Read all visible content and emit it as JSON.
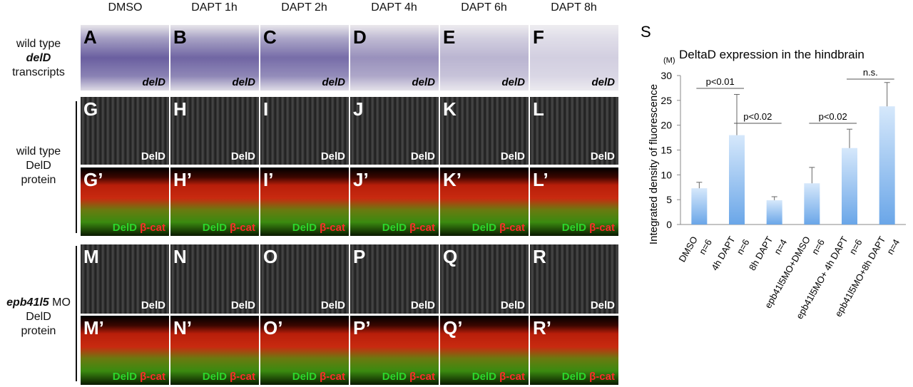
{
  "column_headers": [
    "DMSO",
    "DAPT 1h",
    "DAPT 2h",
    "DAPT 4h",
    "DAPT 6h",
    "DAPT 8h"
  ],
  "row_labels": {
    "r1": {
      "l1": "wild type",
      "l2": "delD",
      "l3": "transcripts"
    },
    "r2": {
      "l1": "wild type",
      "l2": "DelD",
      "l3": "protein"
    },
    "r3": {
      "l1a": "epb41l5",
      "l1b": " MO",
      "l2": "DelD",
      "l3": "protein"
    }
  },
  "ish": {
    "letters": [
      "A",
      "B",
      "C",
      "D",
      "E",
      "F"
    ],
    "tag": "delD"
  },
  "delta": {
    "letters": [
      "G",
      "H",
      "I",
      "J",
      "K",
      "L"
    ],
    "tag": "DelD"
  },
  "delta_merge": {
    "letters": [
      "G’",
      "H’",
      "I’",
      "J’",
      "K’",
      "L’"
    ],
    "tag_green": "DelD",
    "tag_red": "β-cat"
  },
  "mo": {
    "letters": [
      "M",
      "N",
      "O",
      "P",
      "Q",
      "R"
    ],
    "tag": "DelD"
  },
  "mo_merge": {
    "letters": [
      "M’",
      "N’",
      "O’",
      "P’",
      "Q’",
      "R’"
    ],
    "tag_green": "DelD",
    "tag_red": "β-cat"
  },
  "panel_s": {
    "letter": "S",
    "unit": "(M)"
  },
  "chart_data": {
    "type": "bar",
    "title": "DeltaD expression in the hindbrain",
    "ylabel": "Integrated density of fluorescence",
    "ylim": [
      0,
      30
    ],
    "yticks": [
      0,
      5,
      10,
      15,
      20,
      25,
      30
    ],
    "categories": [
      "DMSO",
      "4h DAPT",
      "8h DAPT",
      "epb41l5MO+DMSO",
      "epb41l5MO+ 4h DAPT",
      "epb41l5MO+8h DAPT"
    ],
    "n_labels": [
      "n=6",
      "n=6",
      "n=4",
      "n=6",
      "n=6",
      "n=4"
    ],
    "values": [
      7.3,
      18.0,
      4.9,
      8.3,
      15.4,
      23.8
    ],
    "errors": [
      1.2,
      8.2,
      0.7,
      3.2,
      3.8,
      4.8
    ],
    "bar_color": "#6aa6e8",
    "annotations": [
      {
        "label": "p<0.01",
        "from": 0,
        "to": 1
      },
      {
        "label": "p<0.02",
        "from": 1,
        "to": 2
      },
      {
        "label": "p<0.02",
        "from": 3,
        "to": 4
      },
      {
        "label": "n.s.",
        "from": 4,
        "to": 5
      }
    ]
  }
}
